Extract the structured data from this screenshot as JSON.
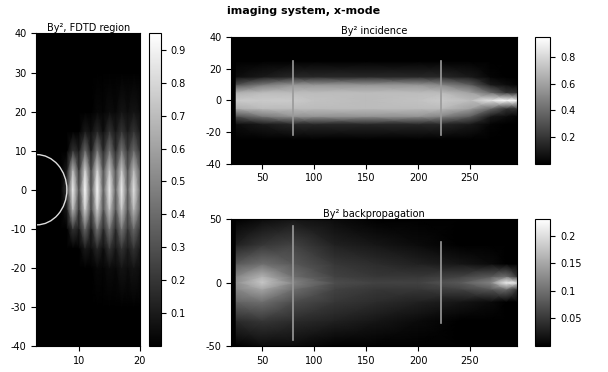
{
  "title": "imaging system, x-mode",
  "chart_data": [
    {
      "type": "heatmap",
      "title": "By², FDTD region",
      "color": "gray",
      "xlim": [
        3,
        20
      ],
      "xticks": [
        10,
        20
      ],
      "ylim": [
        -40,
        40
      ],
      "yticks": [
        -40,
        -30,
        -20,
        -10,
        0,
        10,
        20,
        30,
        40
      ],
      "x": [
        4,
        5,
        6,
        7,
        8,
        9,
        10,
        11,
        12,
        13,
        14,
        15,
        16,
        17,
        18,
        19,
        20
      ],
      "y": [
        -40,
        -30,
        -20,
        -15,
        -10,
        -5,
        0,
        5,
        10,
        15,
        20,
        30,
        40
      ],
      "cells": [
        [
          0,
          0,
          0,
          0,
          0,
          0,
          0,
          0,
          0,
          0,
          0,
          0,
          0,
          0,
          0,
          0,
          0
        ],
        [
          0,
          0,
          0,
          0,
          0,
          0,
          0,
          0,
          0,
          0,
          0,
          0,
          0,
          0,
          0,
          0,
          0
        ],
        [
          0,
          0,
          0,
          0,
          0,
          0,
          0,
          0,
          0,
          0.03,
          0.02,
          0.05,
          0.03,
          0.08,
          0.05,
          0.08,
          0.05
        ],
        [
          0,
          0,
          0,
          0,
          0,
          0,
          0,
          0.1,
          0.05,
          0.15,
          0.05,
          0.2,
          0.08,
          0.2,
          0.1,
          0.2,
          0.1
        ],
        [
          0,
          0,
          0,
          0,
          0,
          0.2,
          0.1,
          0.4,
          0.1,
          0.45,
          0.15,
          0.45,
          0.15,
          0.45,
          0.2,
          0.4,
          0.2
        ],
        [
          0,
          0,
          0,
          0,
          0.1,
          0.7,
          0.2,
          0.8,
          0.25,
          0.8,
          0.3,
          0.75,
          0.3,
          0.75,
          0.3,
          0.7,
          0.35
        ],
        [
          0,
          0,
          0,
          0,
          0.2,
          0.9,
          0.3,
          0.95,
          0.3,
          0.95,
          0.35,
          0.9,
          0.35,
          0.9,
          0.35,
          0.85,
          0.4
        ],
        [
          0,
          0,
          0,
          0,
          0.1,
          0.7,
          0.2,
          0.8,
          0.25,
          0.8,
          0.3,
          0.75,
          0.3,
          0.75,
          0.3,
          0.7,
          0.35
        ],
        [
          0,
          0,
          0,
          0,
          0,
          0.2,
          0.1,
          0.4,
          0.1,
          0.45,
          0.15,
          0.45,
          0.15,
          0.45,
          0.2,
          0.4,
          0.2
        ],
        [
          0,
          0,
          0,
          0,
          0,
          0,
          0,
          0.1,
          0.05,
          0.15,
          0.05,
          0.2,
          0.08,
          0.2,
          0.1,
          0.2,
          0.1
        ],
        [
          0,
          0,
          0,
          0,
          0,
          0,
          0,
          0,
          0,
          0.03,
          0.02,
          0.05,
          0.03,
          0.08,
          0.05,
          0.08,
          0.05
        ],
        [
          0,
          0,
          0,
          0,
          0,
          0,
          0,
          0,
          0,
          0,
          0,
          0,
          0,
          0,
          0,
          0,
          0
        ],
        [
          0,
          0,
          0,
          0,
          0,
          0,
          0,
          0,
          0,
          0,
          0,
          0,
          0,
          0,
          0,
          0,
          0
        ]
      ],
      "colorbar": {
        "range": [
          0,
          0.95
        ],
        "ticks": [
          0.1,
          0.2,
          0.3,
          0.4,
          0.5,
          0.6,
          0.7,
          0.8,
          0.9
        ]
      },
      "lens_surface": {
        "vertex_x": 8,
        "y": [
          -9,
          9
        ]
      }
    },
    {
      "type": "heatmap",
      "title": "By² incidence",
      "color": "gray",
      "xlim": [
        20,
        295
      ],
      "xticks": [
        50,
        100,
        150,
        200,
        250
      ],
      "ylim": [
        -40,
        40
      ],
      "yticks": [
        -40,
        -20,
        0,
        20,
        40
      ],
      "x": [
        25,
        50,
        80,
        100,
        150,
        200,
        222,
        250,
        270,
        285,
        295
      ],
      "y": [
        -40,
        -25,
        -15,
        -10,
        -5,
        0,
        5,
        10,
        15,
        25,
        40
      ],
      "cells": [
        [
          0,
          0,
          0,
          0,
          0,
          0,
          0,
          0,
          0,
          0,
          0
        ],
        [
          0,
          0,
          0,
          0,
          0,
          0,
          0,
          0,
          0,
          0,
          0
        ],
        [
          0.05,
          0.1,
          0.15,
          0.15,
          0.15,
          0.15,
          0.15,
          0.1,
          0.02,
          0,
          0
        ],
        [
          0.3,
          0.45,
          0.55,
          0.55,
          0.55,
          0.55,
          0.5,
          0.35,
          0.1,
          0.05,
          0.02
        ],
        [
          0.65,
          0.7,
          0.7,
          0.7,
          0.7,
          0.7,
          0.7,
          0.6,
          0.4,
          0.2,
          0.2
        ],
        [
          0.75,
          0.75,
          0.75,
          0.72,
          0.7,
          0.72,
          0.75,
          0.7,
          0.85,
          0.95,
          0.9
        ],
        [
          0.65,
          0.7,
          0.7,
          0.7,
          0.7,
          0.7,
          0.7,
          0.6,
          0.4,
          0.2,
          0.2
        ],
        [
          0.3,
          0.45,
          0.55,
          0.55,
          0.55,
          0.55,
          0.5,
          0.35,
          0.1,
          0.05,
          0.02
        ],
        [
          0.05,
          0.1,
          0.15,
          0.15,
          0.15,
          0.15,
          0.15,
          0.1,
          0.02,
          0,
          0
        ],
        [
          0,
          0,
          0,
          0,
          0,
          0,
          0,
          0,
          0,
          0,
          0
        ],
        [
          0,
          0,
          0,
          0,
          0,
          0,
          0,
          0,
          0,
          0,
          0
        ]
      ],
      "colorbar": {
        "range": [
          0,
          0.95
        ],
        "ticks": [
          0.2,
          0.4,
          0.6,
          0.8
        ]
      },
      "lenses": [
        {
          "x": 80,
          "y": [
            -22,
            25
          ]
        },
        {
          "x": 222,
          "y": [
            -22,
            25
          ]
        }
      ]
    },
    {
      "type": "heatmap",
      "title": "By² backpropagation",
      "color": "gray",
      "xlim": [
        20,
        295
      ],
      "xticks": [
        50,
        100,
        150,
        200,
        250
      ],
      "ylim": [
        -50,
        50
      ],
      "yticks": [
        -50,
        0,
        50
      ],
      "x": [
        25,
        50,
        80,
        120,
        160,
        200,
        240,
        270,
        285,
        295
      ],
      "y": [
        -50,
        -30,
        -15,
        -5,
        0,
        5,
        15,
        30,
        50
      ],
      "cells": [
        [
          0,
          0.01,
          0.01,
          0,
          0,
          0,
          0,
          0,
          0,
          0
        ],
        [
          0.04,
          0.05,
          0.04,
          0.03,
          0.02,
          0.01,
          0,
          0,
          0,
          0
        ],
        [
          0.09,
          0.1,
          0.07,
          0.05,
          0.04,
          0.03,
          0.02,
          0.01,
          0,
          0
        ],
        [
          0.12,
          0.15,
          0.1,
          0.06,
          0.05,
          0.05,
          0.06,
          0.08,
          0.1,
          0.05
        ],
        [
          0.13,
          0.18,
          0.12,
          0.07,
          0.06,
          0.06,
          0.08,
          0.12,
          0.22,
          0.2
        ],
        [
          0.12,
          0.16,
          0.1,
          0.06,
          0.05,
          0.05,
          0.06,
          0.08,
          0.1,
          0.05
        ],
        [
          0.08,
          0.1,
          0.08,
          0.05,
          0.04,
          0.03,
          0.02,
          0.01,
          0,
          0
        ],
        [
          0.03,
          0.05,
          0.06,
          0.03,
          0.02,
          0.01,
          0,
          0,
          0,
          0
        ],
        [
          0,
          0.01,
          0.02,
          0.01,
          0,
          0,
          0,
          0,
          0,
          0
        ]
      ],
      "colorbar": {
        "range": [
          0,
          0.23
        ],
        "ticks": [
          0.05,
          0.1,
          0.15,
          0.2
        ]
      },
      "lenses": [
        {
          "x": 80,
          "y": [
            -45,
            45
          ]
        },
        {
          "x": 222,
          "y": [
            -32,
            32
          ]
        }
      ]
    }
  ]
}
